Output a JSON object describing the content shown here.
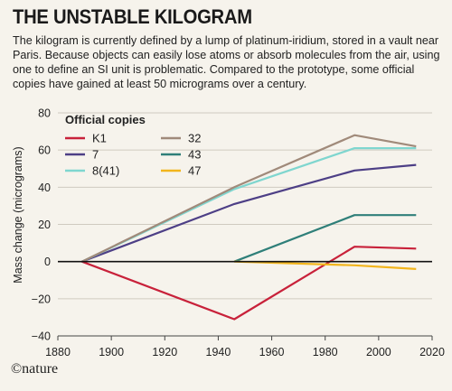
{
  "header": {
    "title": "THE UNSTABLE KILOGRAM",
    "subtitle": "The kilogram is currently defined by a lump of platinum-iridium, stored in a vault near Paris. Because objects can easily lose atoms or absorb molecules from the air, using one to define an SI unit is problematic. Compared to the prototype, some official copies have gained at least 50 micrograms over a century."
  },
  "credit": "©nature",
  "chart_data": {
    "type": "line",
    "title": "THE UNSTABLE KILOGRAM",
    "xlabel": "",
    "ylabel": "Mass change (micrograms)",
    "xlim": [
      1880,
      2020
    ],
    "ylim": [
      -40,
      80
    ],
    "x_ticks": [
      "1880",
      "1900",
      "1920",
      "1940",
      "1960",
      "1980",
      "2000",
      "2020"
    ],
    "y_ticks": [
      "−40",
      "−20",
      "0",
      "20",
      "40",
      "60",
      "80"
    ],
    "legend_title": "Official copies",
    "legend_position": "top-left",
    "grid": true,
    "series": [
      {
        "name": "K1",
        "color": "#c8213a",
        "points": [
          [
            1889,
            0
          ],
          [
            1946,
            -31
          ],
          [
            1991,
            8
          ],
          [
            2014,
            7
          ]
        ]
      },
      {
        "name": "7",
        "color": "#4d3f86",
        "points": [
          [
            1889,
            0
          ],
          [
            1946,
            31
          ],
          [
            1991,
            49
          ],
          [
            2014,
            52
          ]
        ]
      },
      {
        "name": "8(41)",
        "color": "#7fd6cf",
        "points": [
          [
            1889,
            0
          ],
          [
            1946,
            39
          ],
          [
            1991,
            61
          ],
          [
            2014,
            61
          ]
        ]
      },
      {
        "name": "32",
        "color": "#a08a7a",
        "points": [
          [
            1889,
            0
          ],
          [
            1946,
            40
          ],
          [
            1991,
            68
          ],
          [
            2014,
            62
          ]
        ]
      },
      {
        "name": "43",
        "color": "#2f7f79",
        "points": [
          [
            1946,
            0
          ],
          [
            1991,
            25
          ],
          [
            2014,
            25
          ]
        ]
      },
      {
        "name": "47",
        "color": "#f2b51d",
        "points": [
          [
            1946,
            0
          ],
          [
            1991,
            -2
          ],
          [
            2014,
            -4
          ]
        ]
      }
    ]
  }
}
